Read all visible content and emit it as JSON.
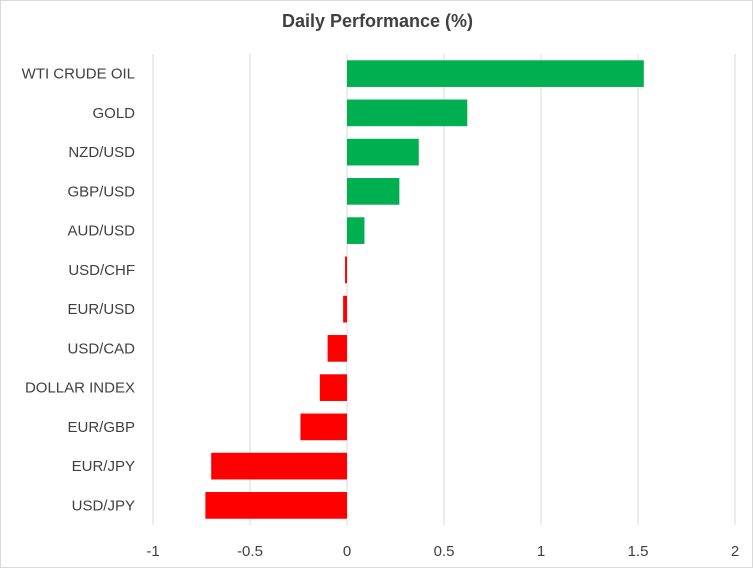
{
  "chart_data": {
    "type": "bar",
    "orientation": "horizontal",
    "title": "Daily Performance (%)",
    "xlabel": "",
    "ylabel": "",
    "categories": [
      "WTI CRUDE OIL",
      "GOLD",
      "NZD/USD",
      "GBP/USD",
      "AUD/USD",
      "USD/CHF",
      "EUR/USD",
      "USD/CAD",
      "DOLLAR INDEX",
      "EUR/GBP",
      "EUR/JPY",
      "USD/JPY"
    ],
    "values": [
      1.53,
      0.62,
      0.37,
      0.27,
      0.09,
      -0.01,
      -0.02,
      -0.1,
      -0.14,
      -0.24,
      -0.7,
      -0.73
    ],
    "xlim": [
      -1,
      2
    ],
    "xticks": [
      -1,
      -0.5,
      0,
      0.5,
      1,
      1.5,
      2
    ],
    "xtick_labels": [
      "-1",
      "-0.5",
      "0",
      "0.5",
      "1",
      "1.5",
      "2"
    ],
    "grid": "vertical",
    "legend": "none",
    "colors": {
      "positive": "#00b050",
      "negative": "#ff0000",
      "grid": "#d9d9d9",
      "text": "#404040"
    }
  }
}
